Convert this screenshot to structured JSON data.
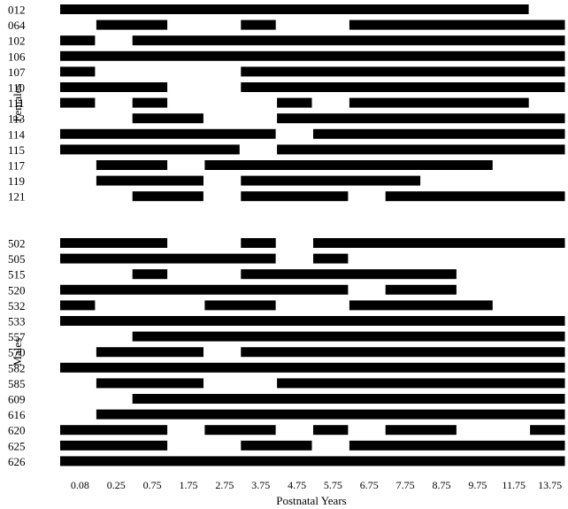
{
  "chart_data": {
    "type": "bar",
    "subtype": "timeline",
    "xlabel": "Postnatal Years",
    "x_ticks": [
      "0.08",
      "0.25",
      "0.75",
      "1.75",
      "2.75",
      "3.75",
      "4.75",
      "5.75",
      "6.75",
      "7.75",
      "8.75",
      "9.75",
      "11.75",
      "13.75"
    ],
    "grid": false,
    "bar_color": "#000000",
    "groups": [
      {
        "name": "Females",
        "rows": [
          {
            "id": "012",
            "segments": [
              [
                0,
                13
              ]
            ]
          },
          {
            "id": "064",
            "segments": [
              [
                1,
                3
              ],
              [
                5,
                6
              ],
              [
                8,
                14
              ]
            ]
          },
          {
            "id": "102",
            "segments": [
              [
                0,
                1
              ],
              [
                2,
                14
              ]
            ]
          },
          {
            "id": "106",
            "segments": [
              [
                0,
                14
              ]
            ]
          },
          {
            "id": "107",
            "segments": [
              [
                0,
                1
              ],
              [
                5,
                14
              ]
            ]
          },
          {
            "id": "110",
            "segments": [
              [
                0,
                3
              ],
              [
                5,
                14
              ]
            ]
          },
          {
            "id": "111",
            "segments": [
              [
                0,
                1
              ],
              [
                2,
                3
              ],
              [
                6,
                7
              ],
              [
                8,
                13
              ]
            ]
          },
          {
            "id": "113",
            "segments": [
              [
                2,
                4
              ],
              [
                6,
                14
              ]
            ]
          },
          {
            "id": "114",
            "segments": [
              [
                0,
                6
              ],
              [
                7,
                14
              ]
            ]
          },
          {
            "id": "115",
            "segments": [
              [
                0,
                5
              ],
              [
                6,
                14
              ]
            ]
          },
          {
            "id": "117",
            "segments": [
              [
                1,
                3
              ],
              [
                4,
                12
              ]
            ]
          },
          {
            "id": "119",
            "segments": [
              [
                1,
                4
              ],
              [
                5,
                10
              ]
            ]
          },
          {
            "id": "121",
            "segments": [
              [
                2,
                4
              ],
              [
                5,
                8
              ],
              [
                9,
                14
              ]
            ]
          }
        ]
      },
      {
        "name": "Males",
        "rows": [
          {
            "id": "502",
            "segments": [
              [
                0,
                3
              ],
              [
                5,
                6
              ],
              [
                7,
                14
              ]
            ]
          },
          {
            "id": "505",
            "segments": [
              [
                0,
                6
              ],
              [
                7,
                8
              ]
            ]
          },
          {
            "id": "515",
            "segments": [
              [
                2,
                3
              ],
              [
                5,
                11
              ]
            ]
          },
          {
            "id": "520",
            "segments": [
              [
                0,
                8
              ],
              [
                9,
                11
              ]
            ]
          },
          {
            "id": "532",
            "segments": [
              [
                0,
                1
              ],
              [
                4,
                6
              ],
              [
                8,
                12
              ]
            ]
          },
          {
            "id": "533",
            "segments": [
              [
                0,
                14
              ]
            ]
          },
          {
            "id": "557",
            "segments": [
              [
                2,
                14
              ]
            ]
          },
          {
            "id": "570",
            "segments": [
              [
                1,
                4
              ],
              [
                5,
                14
              ]
            ]
          },
          {
            "id": "582",
            "segments": [
              [
                0,
                14
              ]
            ]
          },
          {
            "id": "585",
            "segments": [
              [
                1,
                4
              ],
              [
                6,
                14
              ]
            ]
          },
          {
            "id": "609",
            "segments": [
              [
                2,
                14
              ]
            ]
          },
          {
            "id": "616",
            "segments": [
              [
                1,
                14
              ]
            ]
          },
          {
            "id": "620",
            "segments": [
              [
                0,
                3
              ],
              [
                4,
                6
              ],
              [
                7,
                8
              ],
              [
                9,
                11
              ],
              [
                13,
                14
              ]
            ]
          },
          {
            "id": "625",
            "segments": [
              [
                0,
                3
              ],
              [
                5,
                7
              ],
              [
                8,
                14
              ]
            ]
          },
          {
            "id": "626",
            "segments": [
              [
                0,
                14
              ]
            ]
          }
        ]
      }
    ]
  }
}
